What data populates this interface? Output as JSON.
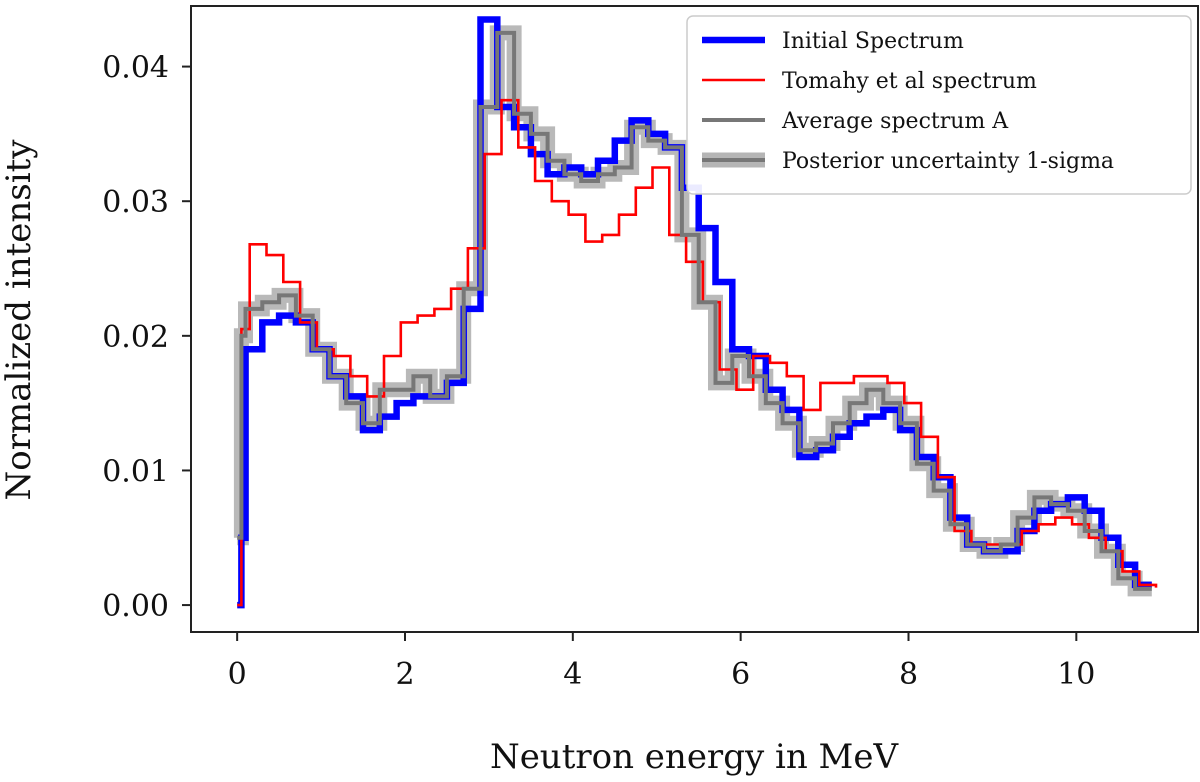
{
  "chart_data": {
    "type": "line",
    "step": true,
    "title": "",
    "xlabel": "Neutron energy in MeV",
    "ylabel": "Normalized intensity",
    "xlim": [
      -0.55,
      11.45
    ],
    "ylim": [
      -0.002,
      0.0445
    ],
    "xticks": [
      0,
      2,
      4,
      6,
      8,
      10
    ],
    "xtick_labels": [
      "0",
      "2",
      "4",
      "6",
      "8",
      "10"
    ],
    "yticks": [
      0.0,
      0.01,
      0.02,
      0.03,
      0.04
    ],
    "ytick_labels": [
      "0.00",
      "0.01",
      "0.02",
      "0.03",
      "0.04"
    ],
    "grid": false,
    "legend_position": "top-right",
    "series": [
      {
        "name": "Initial Spectrum",
        "color": "#0000ff",
        "width": "thick",
        "x": [
          0.0,
          0.05,
          0.1,
          0.3,
          0.5,
          0.7,
          0.9,
          1.1,
          1.3,
          1.5,
          1.7,
          1.9,
          2.1,
          2.3,
          2.5,
          2.7,
          2.9,
          3.1,
          3.3,
          3.5,
          3.7,
          3.9,
          4.1,
          4.3,
          4.5,
          4.7,
          4.9,
          5.1,
          5.3,
          5.5,
          5.7,
          5.9,
          6.1,
          6.3,
          6.5,
          6.7,
          6.9,
          7.1,
          7.3,
          7.5,
          7.7,
          7.9,
          8.1,
          8.3,
          8.5,
          8.7,
          8.9,
          9.1,
          9.3,
          9.5,
          9.7,
          9.9,
          10.1,
          10.3,
          10.5,
          10.7,
          10.9
        ],
        "y": [
          0.0,
          0.005,
          0.019,
          0.021,
          0.0215,
          0.021,
          0.019,
          0.017,
          0.0155,
          0.013,
          0.014,
          0.015,
          0.0155,
          0.0155,
          0.0165,
          0.022,
          0.0435,
          0.037,
          0.0355,
          0.0335,
          0.032,
          0.0325,
          0.032,
          0.033,
          0.0345,
          0.036,
          0.035,
          0.034,
          0.031,
          0.028,
          0.024,
          0.019,
          0.0185,
          0.016,
          0.0145,
          0.011,
          0.0115,
          0.0125,
          0.0135,
          0.014,
          0.0145,
          0.013,
          0.011,
          0.0095,
          0.0065,
          0.0045,
          0.004,
          0.004,
          0.0055,
          0.007,
          0.0075,
          0.008,
          0.007,
          0.005,
          0.003,
          0.0015,
          0.0015
        ]
      },
      {
        "name": "Tomahy et al spectrum",
        "color": "#ff0000",
        "width": "thin",
        "x": [
          0.0,
          0.05,
          0.15,
          0.35,
          0.55,
          0.75,
          0.95,
          1.15,
          1.35,
          1.55,
          1.75,
          1.95,
          2.15,
          2.35,
          2.55,
          2.75,
          2.95,
          3.15,
          3.35,
          3.55,
          3.75,
          3.95,
          4.15,
          4.35,
          4.55,
          4.75,
          4.95,
          5.15,
          5.35,
          5.55,
          5.75,
          5.95,
          6.15,
          6.35,
          6.55,
          6.75,
          6.95,
          7.15,
          7.35,
          7.55,
          7.75,
          7.95,
          8.15,
          8.35,
          8.55,
          8.75,
          8.95,
          9.15,
          9.35,
          9.55,
          9.75,
          9.95,
          10.15,
          10.35,
          10.55,
          10.75,
          10.95
        ],
        "y": [
          0.0,
          0.0205,
          0.0268,
          0.026,
          0.024,
          0.021,
          0.019,
          0.0185,
          0.017,
          0.0155,
          0.0185,
          0.021,
          0.0215,
          0.022,
          0.0235,
          0.0265,
          0.0335,
          0.0375,
          0.034,
          0.0315,
          0.03,
          0.029,
          0.027,
          0.0275,
          0.029,
          0.031,
          0.0325,
          0.0275,
          0.0255,
          0.0225,
          0.0175,
          0.016,
          0.0185,
          0.018,
          0.017,
          0.0145,
          0.0165,
          0.0165,
          0.017,
          0.017,
          0.0165,
          0.015,
          0.0125,
          0.0095,
          0.0055,
          0.0045,
          0.0045,
          0.0045,
          0.0055,
          0.006,
          0.0065,
          0.006,
          0.005,
          0.004,
          0.0025,
          0.0015,
          0.0013
        ]
      },
      {
        "name": "Average spectrum A",
        "color": "#777777",
        "width": "medium",
        "x": [
          0.0,
          0.05,
          0.1,
          0.3,
          0.5,
          0.7,
          0.9,
          1.1,
          1.3,
          1.5,
          1.7,
          1.9,
          2.1,
          2.3,
          2.5,
          2.7,
          2.9,
          3.1,
          3.3,
          3.5,
          3.7,
          3.9,
          4.1,
          4.3,
          4.5,
          4.7,
          4.9,
          5.1,
          5.3,
          5.5,
          5.7,
          5.9,
          6.1,
          6.3,
          6.5,
          6.7,
          6.9,
          7.1,
          7.3,
          7.5,
          7.7,
          7.9,
          8.1,
          8.3,
          8.5,
          8.7,
          8.9,
          9.1,
          9.3,
          9.5,
          9.7,
          9.9,
          10.1,
          10.3,
          10.5,
          10.7,
          10.9
        ],
        "y": [
          0.005,
          0.02,
          0.022,
          0.0225,
          0.023,
          0.0215,
          0.019,
          0.017,
          0.015,
          0.0135,
          0.016,
          0.016,
          0.017,
          0.0155,
          0.017,
          0.0235,
          0.037,
          0.0425,
          0.0365,
          0.035,
          0.033,
          0.032,
          0.0315,
          0.032,
          0.0325,
          0.0355,
          0.0345,
          0.034,
          0.0275,
          0.0225,
          0.0165,
          0.0185,
          0.017,
          0.015,
          0.0135,
          0.0115,
          0.012,
          0.0135,
          0.015,
          0.016,
          0.015,
          0.0135,
          0.0105,
          0.0085,
          0.006,
          0.0045,
          0.004,
          0.0045,
          0.0065,
          0.008,
          0.0075,
          0.007,
          0.0055,
          0.004,
          0.002,
          0.0012,
          0.0012
        ]
      },
      {
        "name": "Posterior uncertainty 1-sigma",
        "color": "#b5b5b5",
        "width": "band",
        "note": "band drawn around Average spectrum A"
      }
    ]
  }
}
